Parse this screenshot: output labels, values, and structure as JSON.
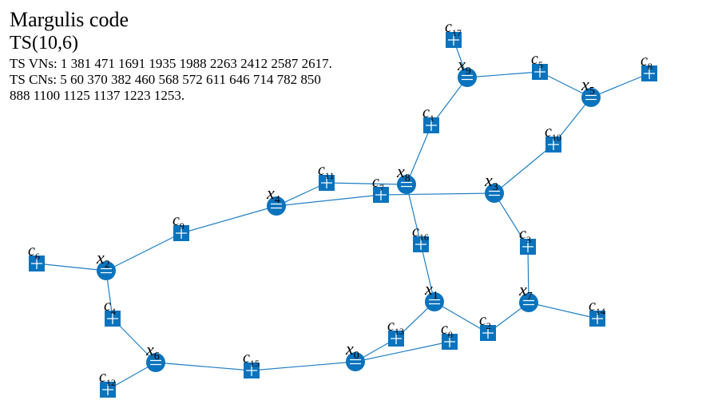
{
  "header": {
    "title": "Margulis code",
    "subtitle": "TS(10,6)",
    "vns_line": "TS VNs: 1 381 471 1691 1935 1988 2263 2412 2587 2617.",
    "cns_line1": "TS CNs: 5 60 370 382 460 568 572 611 646 714 782 850",
    "cns_line2": "888 1100 1125 1137 1223 1253."
  },
  "colors": {
    "node_fill": "#0a73bd",
    "edge": "#1f7fc4",
    "glyph": "#ffffff"
  },
  "graph": {
    "variable_nodes": [
      {
        "id": "x0",
        "base": "x",
        "sub": "0"
      },
      {
        "id": "x1",
        "base": "x",
        "sub": "1"
      },
      {
        "id": "x2",
        "base": "x",
        "sub": "2"
      },
      {
        "id": "x3",
        "base": "x",
        "sub": "3"
      },
      {
        "id": "x4",
        "base": "x",
        "sub": "4"
      },
      {
        "id": "x5",
        "base": "x",
        "sub": "5"
      },
      {
        "id": "x6",
        "base": "x",
        "sub": "6"
      },
      {
        "id": "x7",
        "base": "x",
        "sub": "7"
      },
      {
        "id": "x8",
        "base": "x",
        "sub": "8"
      },
      {
        "id": "x9",
        "base": "x",
        "sub": "9"
      }
    ],
    "check_nodes": [
      {
        "id": "c0",
        "base": "c",
        "sub": "0"
      },
      {
        "id": "c1",
        "base": "c",
        "sub": "1"
      },
      {
        "id": "c2",
        "base": "c",
        "sub": "2"
      },
      {
        "id": "c3",
        "base": "c",
        "sub": "3"
      },
      {
        "id": "c4",
        "base": "c",
        "sub": "4"
      },
      {
        "id": "c5",
        "base": "c",
        "sub": "5"
      },
      {
        "id": "c6",
        "base": "c",
        "sub": "6"
      },
      {
        "id": "c7",
        "base": "c",
        "sub": "7"
      },
      {
        "id": "c8",
        "base": "c",
        "sub": "8"
      },
      {
        "id": "c9",
        "base": "c",
        "sub": "9"
      },
      {
        "id": "c10",
        "base": "c",
        "sub": "10"
      },
      {
        "id": "c11",
        "base": "c",
        "sub": "11"
      },
      {
        "id": "c12",
        "base": "c",
        "sub": "12"
      },
      {
        "id": "c13",
        "base": "c",
        "sub": "13"
      },
      {
        "id": "c14",
        "base": "c",
        "sub": "14"
      },
      {
        "id": "c15",
        "base": "c",
        "sub": "15"
      },
      {
        "id": "c16",
        "base": "c",
        "sub": "16"
      },
      {
        "id": "c17",
        "base": "c",
        "sub": "17"
      }
    ],
    "edges": [
      [
        "x9",
        "c17"
      ],
      [
        "x9",
        "c5"
      ],
      [
        "x9",
        "c1"
      ],
      [
        "x5",
        "c5"
      ],
      [
        "x5",
        "c8"
      ],
      [
        "x5",
        "c10"
      ],
      [
        "x8",
        "c1"
      ],
      [
        "x8",
        "c11"
      ],
      [
        "x8",
        "c16"
      ],
      [
        "x3",
        "c10"
      ],
      [
        "x3",
        "c7"
      ],
      [
        "x3",
        "c3"
      ],
      [
        "x4",
        "c11"
      ],
      [
        "x4",
        "c7"
      ],
      [
        "x4",
        "c9"
      ],
      [
        "x2",
        "c9"
      ],
      [
        "x2",
        "c6"
      ],
      [
        "x2",
        "c4"
      ],
      [
        "x6",
        "c4"
      ],
      [
        "x6",
        "c12"
      ],
      [
        "x6",
        "c15"
      ],
      [
        "x0",
        "c15"
      ],
      [
        "x0",
        "c13"
      ],
      [
        "x0",
        "c0"
      ],
      [
        "x1",
        "c16"
      ],
      [
        "x1",
        "c13"
      ],
      [
        "x1",
        "c2"
      ],
      [
        "x7",
        "c3"
      ],
      [
        "x7",
        "c2"
      ],
      [
        "x7",
        "c14"
      ]
    ]
  }
}
